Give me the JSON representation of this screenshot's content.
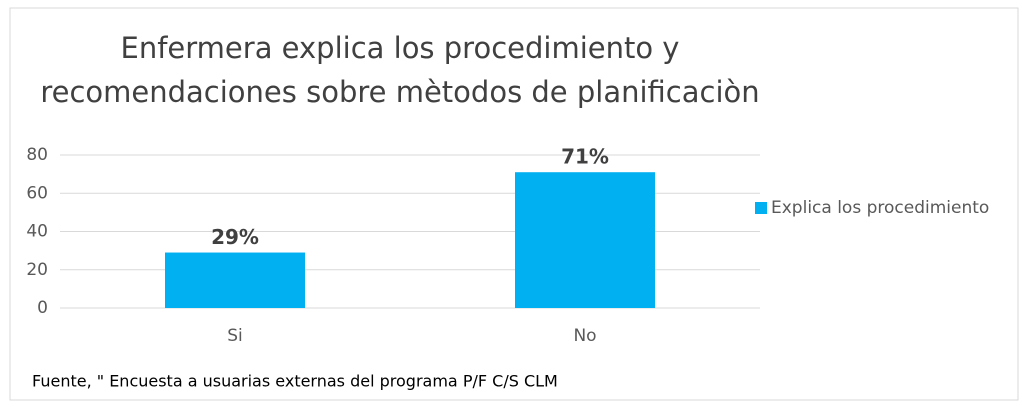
{
  "chart_data": {
    "type": "bar",
    "title": "Enfermera explica los procedimiento y recomendaciones sobre mètodos de planificaciòn",
    "categories": [
      "Si",
      "No"
    ],
    "series": [
      {
        "name": "Explica los procedimiento",
        "color": "#00b0f0",
        "values": [
          29,
          71
        ],
        "value_labels": [
          "29%",
          "71%"
        ]
      }
    ],
    "ylim": [
      0,
      80
    ],
    "yticks": [
      0,
      20,
      40,
      60,
      80
    ],
    "grid": true,
    "legend": "right",
    "note": "Fuente, \" Encuesta a usuarias externas del programa P/F C/S CLM"
  }
}
